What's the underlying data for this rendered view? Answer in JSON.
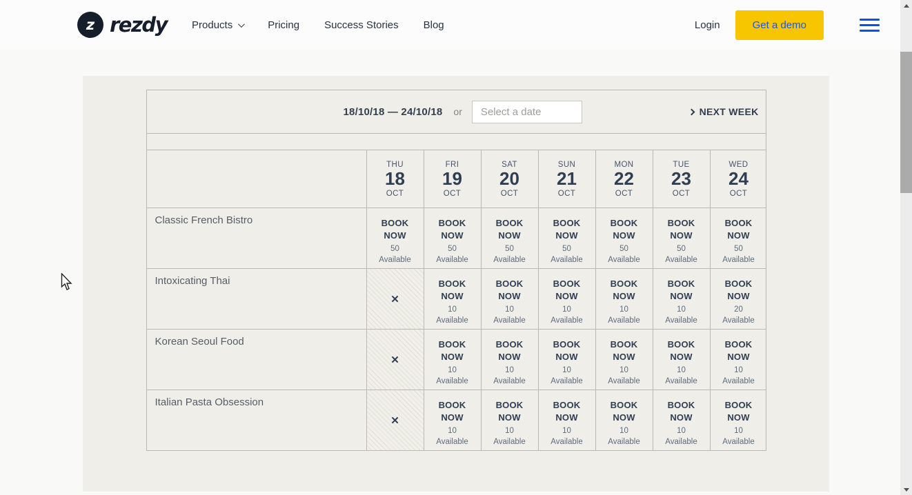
{
  "nav": {
    "logo_text": "rezdy",
    "logo_glyph": "z",
    "items": [
      {
        "label": "Products",
        "has_dropdown": true
      },
      {
        "label": "Pricing",
        "has_dropdown": false
      },
      {
        "label": "Success Stories",
        "has_dropdown": false
      },
      {
        "label": "Blog",
        "has_dropdown": false
      }
    ],
    "login_label": "Login",
    "cta_label": "Get a demo"
  },
  "booking_widget": {
    "week_range": "18/10/18 — 24/10/18",
    "or_label": "or",
    "date_input_placeholder": "Select a date",
    "next_week_label": "NEXT WEEK",
    "book_now_label": "BOOK NOW",
    "available_label": "Available",
    "unavailable_symbol": "✕",
    "days": [
      {
        "weekday": "THU",
        "day": "18",
        "month": "OCT"
      },
      {
        "weekday": "FRI",
        "day": "19",
        "month": "OCT"
      },
      {
        "weekday": "SAT",
        "day": "20",
        "month": "OCT"
      },
      {
        "weekday": "SUN",
        "day": "21",
        "month": "OCT"
      },
      {
        "weekday": "MON",
        "day": "22",
        "month": "OCT"
      },
      {
        "weekday": "TUE",
        "day": "23",
        "month": "OCT"
      },
      {
        "weekday": "WED",
        "day": "24",
        "month": "OCT"
      }
    ],
    "products": [
      {
        "name": "Classic French Bistro",
        "cells": [
          {
            "status": "book",
            "available": 50
          },
          {
            "status": "book",
            "available": 50
          },
          {
            "status": "book",
            "available": 50
          },
          {
            "status": "book",
            "available": 50
          },
          {
            "status": "book",
            "available": 50
          },
          {
            "status": "book",
            "available": 50
          },
          {
            "status": "book",
            "available": 50
          }
        ]
      },
      {
        "name": "Intoxicating Thai",
        "cells": [
          {
            "status": "unavailable",
            "available": null
          },
          {
            "status": "book",
            "available": 10
          },
          {
            "status": "book",
            "available": 10
          },
          {
            "status": "book",
            "available": 10
          },
          {
            "status": "book",
            "available": 10
          },
          {
            "status": "book",
            "available": 10
          },
          {
            "status": "book",
            "available": 20
          }
        ]
      },
      {
        "name": "Korean Seoul Food",
        "cells": [
          {
            "status": "unavailable",
            "available": null
          },
          {
            "status": "book",
            "available": 10
          },
          {
            "status": "book",
            "available": 10
          },
          {
            "status": "book",
            "available": 10
          },
          {
            "status": "book",
            "available": 10
          },
          {
            "status": "book",
            "available": 10
          },
          {
            "status": "book",
            "available": 10
          }
        ]
      },
      {
        "name": "Italian Pasta Obsession",
        "cells": [
          {
            "status": "unavailable",
            "available": null
          },
          {
            "status": "book",
            "available": 10
          },
          {
            "status": "book",
            "available": 10
          },
          {
            "status": "book",
            "available": 10
          },
          {
            "status": "book",
            "available": 10
          },
          {
            "status": "book",
            "available": 10
          },
          {
            "status": "book",
            "available": 10
          }
        ]
      }
    ]
  },
  "colors": {
    "cta_bg": "#f7c600",
    "cta_text": "#1d56d7",
    "hamburger_blue": "#1150d8",
    "widget_bg": "#efeee8",
    "table_border": "#b9b8b3",
    "dark_navy": "#2f3e52",
    "page_bg": "#f9f9f8",
    "header_bg": "#fcfcfc"
  }
}
